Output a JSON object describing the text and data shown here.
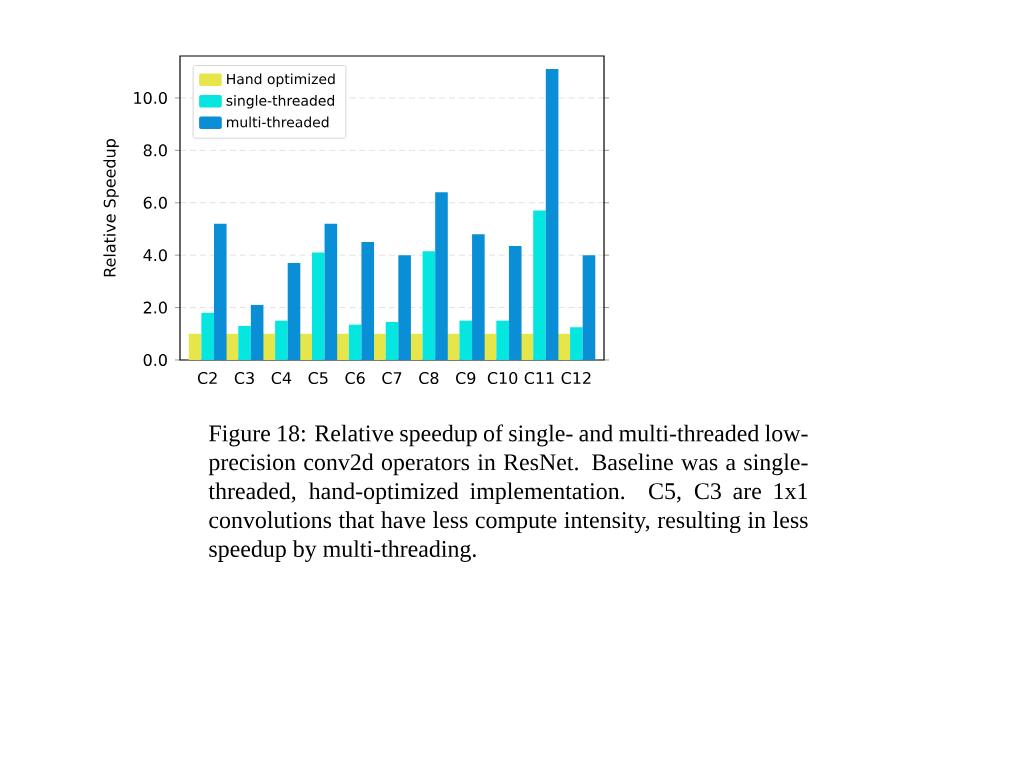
{
  "chart_data": {
    "type": "bar",
    "ylabel": "Relative Speedup",
    "categories": [
      "C2",
      "C3",
      "C4",
      "C5",
      "C6",
      "C7",
      "C8",
      "C9",
      "C10",
      "C11",
      "C12"
    ],
    "series": [
      {
        "name": "Hand optimized",
        "color": "#e6e64a",
        "values": [
          1.0,
          1.0,
          1.0,
          1.0,
          1.0,
          1.0,
          1.0,
          1.0,
          1.0,
          1.0,
          1.0
        ]
      },
      {
        "name": "single-threaded",
        "color": "#05e6e0",
        "values": [
          1.8,
          1.3,
          1.5,
          4.1,
          1.35,
          1.45,
          4.15,
          1.5,
          1.5,
          5.7,
          1.25
        ]
      },
      {
        "name": "multi-threaded",
        "color": "#0a8fd6",
        "values": [
          5.2,
          2.1,
          3.7,
          5.2,
          4.5,
          4.0,
          6.4,
          4.8,
          4.35,
          11.1,
          4.0
        ]
      }
    ],
    "ylim": [
      0,
      11.6
    ],
    "yticks": [
      {
        "value": 0,
        "label": "0.0"
      },
      {
        "value": 2,
        "label": "2.0"
      },
      {
        "value": 4,
        "label": "4.0"
      },
      {
        "value": 6,
        "label": "6.0"
      },
      {
        "value": 8,
        "label": "8.0"
      },
      {
        "value": 10,
        "label": "10.0"
      }
    ],
    "grid": "y",
    "legend": "top left",
    "annotations": [
      "Figure 18: Relative speedup of single- and multi-threaded low-precision conv2d operators in ResNet. Baseline was a single-threaded, hand-optimized implementation. C5, C3 are 1x1 convolutions that have less compute intensity, resulting in less speedup by multi-threading."
    ]
  }
}
